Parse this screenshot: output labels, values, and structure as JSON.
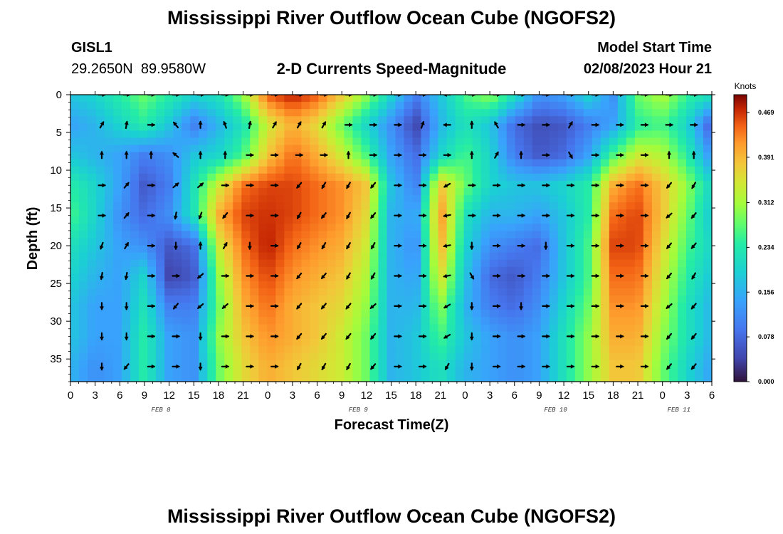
{
  "header": {
    "title": "Mississippi River Outflow Ocean Cube (NGOFS2)",
    "station_id": "GISL1",
    "station_coords": "29.2650N  89.9580W",
    "subtitle": "2-D Currents Speed-Magnitude",
    "model_start_label": "Model Start Time",
    "model_start_value": "02/08/2023 Hour 21"
  },
  "footer": {
    "title": "Mississippi River Outflow Ocean Cube (NGOFS2)"
  },
  "colors": {
    "low": "#30123b",
    "high": "#7a0403"
  },
  "chart_data": {
    "type": "heatmap",
    "title": "2-D Currents Speed-Magnitude",
    "xlabel": "Forecast Time(Z)",
    "ylabel": "Depth (ft)",
    "x_start_hour": 0,
    "x_end_hour": 78,
    "x_tick_hours": [
      0,
      3,
      6,
      9,
      12,
      15,
      18,
      21,
      24,
      27,
      30,
      33,
      36,
      39,
      42,
      45,
      48,
      51,
      54,
      57,
      60,
      63,
      66,
      69,
      72,
      75,
      78
    ],
    "x_tick_labels": [
      "0",
      "3",
      "6",
      "9",
      "12",
      "15",
      "18",
      "21",
      "0",
      "3",
      "6",
      "9",
      "12",
      "15",
      "18",
      "21",
      "0",
      "3",
      "6",
      "9",
      "12",
      "15",
      "18",
      "21",
      "0",
      "3",
      "6"
    ],
    "date_labels": [
      {
        "hour": 11,
        "label": "FEB 8"
      },
      {
        "hour": 35,
        "label": "FEB 9"
      },
      {
        "hour": 59,
        "label": "FEB 10"
      },
      {
        "hour": 74,
        "label": "FEB 11"
      }
    ],
    "ylim": [
      0,
      38
    ],
    "y_ticks": [
      0,
      5,
      10,
      15,
      20,
      25,
      30,
      35
    ],
    "depth_levels": [
      0,
      4,
      8,
      12,
      16,
      20,
      24,
      28,
      32,
      36
    ],
    "time_hours": [
      0,
      3,
      6,
      9,
      12,
      15,
      18,
      21,
      24,
      27,
      30,
      33,
      36,
      39,
      42,
      45,
      48,
      51,
      54,
      57,
      60,
      63,
      66,
      69,
      72,
      75,
      78
    ],
    "speed_knots": [
      [
        0.18,
        0.2,
        0.24,
        0.28,
        0.24,
        0.2,
        0.22,
        0.3,
        0.45,
        0.48,
        0.45,
        0.38,
        0.3,
        0.2,
        0.1,
        0.18,
        0.26,
        0.3,
        0.22,
        0.12,
        0.14,
        0.2,
        0.12,
        0.28,
        0.32,
        0.25,
        0.22
      ],
      [
        0.14,
        0.16,
        0.2,
        0.24,
        0.18,
        0.1,
        0.16,
        0.22,
        0.34,
        0.4,
        0.36,
        0.28,
        0.2,
        0.12,
        0.04,
        0.16,
        0.22,
        0.18,
        0.08,
        0.05,
        0.06,
        0.1,
        0.14,
        0.24,
        0.26,
        0.2,
        0.06
      ],
      [
        0.18,
        0.16,
        0.14,
        0.1,
        0.12,
        0.18,
        0.2,
        0.26,
        0.38,
        0.44,
        0.4,
        0.34,
        0.26,
        0.14,
        0.08,
        0.2,
        0.26,
        0.2,
        0.1,
        0.06,
        0.08,
        0.14,
        0.26,
        0.34,
        0.32,
        0.24,
        0.12
      ],
      [
        0.24,
        0.2,
        0.14,
        0.06,
        0.1,
        0.22,
        0.34,
        0.44,
        0.46,
        0.46,
        0.44,
        0.42,
        0.38,
        0.18,
        0.1,
        0.38,
        0.28,
        0.2,
        0.18,
        0.18,
        0.2,
        0.24,
        0.4,
        0.44,
        0.38,
        0.3,
        0.2
      ],
      [
        0.26,
        0.2,
        0.12,
        0.08,
        0.12,
        0.22,
        0.4,
        0.46,
        0.47,
        0.46,
        0.44,
        0.42,
        0.36,
        0.16,
        0.14,
        0.42,
        0.22,
        0.16,
        0.16,
        0.14,
        0.18,
        0.24,
        0.44,
        0.46,
        0.38,
        0.28,
        0.18
      ],
      [
        0.22,
        0.18,
        0.14,
        0.12,
        0.06,
        0.08,
        0.34,
        0.44,
        0.48,
        0.44,
        0.42,
        0.4,
        0.34,
        0.16,
        0.12,
        0.4,
        0.2,
        0.12,
        0.1,
        0.08,
        0.18,
        0.26,
        0.46,
        0.46,
        0.36,
        0.26,
        0.2
      ],
      [
        0.2,
        0.16,
        0.14,
        0.2,
        0.04,
        0.06,
        0.3,
        0.42,
        0.46,
        0.42,
        0.4,
        0.38,
        0.32,
        0.16,
        0.14,
        0.36,
        0.18,
        0.08,
        0.06,
        0.1,
        0.18,
        0.26,
        0.44,
        0.44,
        0.34,
        0.24,
        0.18
      ],
      [
        0.18,
        0.14,
        0.14,
        0.22,
        0.1,
        0.1,
        0.28,
        0.4,
        0.44,
        0.4,
        0.38,
        0.36,
        0.3,
        0.16,
        0.16,
        0.3,
        0.16,
        0.1,
        0.08,
        0.12,
        0.2,
        0.28,
        0.42,
        0.42,
        0.32,
        0.22,
        0.16
      ],
      [
        0.18,
        0.14,
        0.14,
        0.24,
        0.14,
        0.12,
        0.3,
        0.38,
        0.42,
        0.4,
        0.38,
        0.34,
        0.28,
        0.16,
        0.18,
        0.26,
        0.18,
        0.14,
        0.12,
        0.14,
        0.22,
        0.3,
        0.4,
        0.4,
        0.3,
        0.22,
        0.16
      ],
      [
        0.16,
        0.12,
        0.14,
        0.24,
        0.14,
        0.12,
        0.28,
        0.36,
        0.4,
        0.38,
        0.36,
        0.34,
        0.28,
        0.16,
        0.18,
        0.22,
        0.16,
        0.14,
        0.12,
        0.14,
        0.22,
        0.3,
        0.38,
        0.38,
        0.28,
        0.2,
        0.14
      ]
    ],
    "direction_deg": [
      [
        0,
        0,
        0,
        0,
        0,
        0,
        0,
        0,
        0,
        0,
        0,
        0,
        0,
        0,
        180,
        0,
        0,
        0,
        0,
        0,
        0,
        0,
        0,
        0,
        0,
        0,
        0
      ],
      [
        300,
        280,
        0,
        230,
        270,
        250,
        280,
        300,
        300,
        300,
        0,
        0,
        0,
        290,
        180,
        270,
        240,
        0,
        0,
        300,
        0,
        0,
        0,
        0,
        0,
        0,
        210
      ],
      [
        270,
        270,
        270,
        220,
        270,
        270,
        0,
        0,
        0,
        0,
        270,
        0,
        0,
        0,
        0,
        270,
        300,
        270,
        0,
        60,
        0,
        0,
        0,
        270,
        270,
        0,
        0
      ],
      [
        0,
        310,
        0,
        320,
        320,
        0,
        0,
        0,
        130,
        120,
        120,
        130,
        0,
        0,
        150,
        0,
        0,
        0,
        0,
        0,
        0,
        0,
        0,
        130,
        120,
        0,
        260
      ],
      [
        0,
        310,
        0,
        100,
        110,
        130,
        0,
        0,
        120,
        130,
        120,
        130,
        0,
        0,
        170,
        0,
        0,
        0,
        0,
        0,
        0,
        0,
        0,
        140,
        130,
        0,
        0
      ],
      [
        110,
        300,
        0,
        90,
        270,
        300,
        90,
        0,
        120,
        120,
        120,
        120,
        0,
        0,
        170,
        90,
        0,
        0,
        90,
        0,
        0,
        0,
        0,
        130,
        130,
        0,
        0
      ],
      [
        100,
        100,
        0,
        0,
        140,
        0,
        0,
        0,
        130,
        130,
        120,
        120,
        0,
        0,
        170,
        60,
        0,
        0,
        0,
        0,
        0,
        0,
        0,
        130,
        120,
        0,
        0
      ],
      [
        90,
        90,
        0,
        130,
        140,
        140,
        0,
        0,
        130,
        130,
        130,
        140,
        0,
        0,
        150,
        90,
        0,
        90,
        0,
        0,
        0,
        0,
        0,
        140,
        130,
        300,
        0
      ],
      [
        90,
        90,
        0,
        0,
        90,
        0,
        0,
        0,
        130,
        130,
        130,
        130,
        0,
        0,
        150,
        90,
        0,
        0,
        0,
        0,
        0,
        0,
        0,
        130,
        130,
        0,
        0
      ],
      [
        90,
        130,
        0,
        0,
        90,
        0,
        0,
        0,
        120,
        120,
        120,
        130,
        0,
        0,
        120,
        90,
        0,
        0,
        0,
        0,
        0,
        0,
        0,
        130,
        130,
        0,
        0
      ]
    ],
    "colorbar": {
      "label": "Knots",
      "min": 0.0,
      "max": 0.5,
      "ticks": [
        0.0,
        0.078,
        0.156,
        0.234,
        0.312,
        0.391,
        0.469
      ],
      "tick_labels": [
        "0.000",
        "0.078",
        "0.156",
        "0.234",
        "0.312",
        "0.391",
        "0.469"
      ]
    }
  }
}
